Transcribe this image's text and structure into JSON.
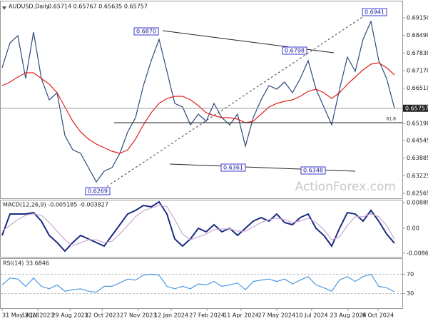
{
  "chart_data": [
    {
      "type": "line",
      "title": "AUDUSD,Daily",
      "ohlc_text": "0.65714 0.65767 0.65635 0.65757",
      "x": [
        0,
        2,
        4,
        6,
        8,
        10,
        12,
        14,
        16,
        18,
        20,
        22,
        24,
        26,
        28,
        30,
        32,
        34,
        36,
        38,
        40,
        42,
        44,
        46,
        48,
        50,
        52,
        54,
        56,
        58,
        60,
        62,
        64,
        66,
        68,
        70,
        72,
        74,
        76,
        78,
        80,
        82,
        84,
        86,
        88,
        90,
        92,
        94,
        96,
        98,
        100
      ],
      "xlim": [
        0,
        100
      ],
      "xticks": [
        {
          "value": 0,
          "label": "31 May 2023"
        },
        {
          "value": 9.1,
          "label": "14 Jul 2023"
        },
        {
          "value": 17.3,
          "label": "29 Aug 2023"
        },
        {
          "value": 25.5,
          "label": "12 Oct 2023"
        },
        {
          "value": 34.7,
          "label": "27 Nov 2023"
        },
        {
          "value": 43.1,
          "label": "12 Jan 2024"
        },
        {
          "value": 52.2,
          "label": "27 Feb 2024"
        },
        {
          "value": 60.9,
          "label": "11 Apr 2024"
        },
        {
          "value": 70,
          "label": "27 May 2024"
        },
        {
          "value": 78.9,
          "label": "10 Jul 2024"
        },
        {
          "value": 88.2,
          "label": "23 Aug 2024"
        },
        {
          "value": 95.8,
          "label": "8 Oct 2024"
        }
      ],
      "ylim": [
        0.62378,
        0.69766
      ],
      "yticks": [
        {
          "value": 0.6915,
          "label": "0.69150"
        },
        {
          "value": 0.6849,
          "label": "0.68490"
        },
        {
          "value": 0.6783,
          "label": "0.67830"
        },
        {
          "value": 0.6717,
          "label": "0.67170"
        },
        {
          "value": 0.6651,
          "label": "0.66510"
        },
        {
          "value": 0.6519,
          "label": "0.65190"
        },
        {
          "value": 0.64545,
          "label": "0.64545"
        },
        {
          "value": 0.63885,
          "label": "0.63885"
        },
        {
          "value": 0.63225,
          "label": "0.63225"
        },
        {
          "value": 0.62565,
          "label": "0.62565"
        }
      ],
      "series": [
        {
          "color": "#2b4a7a",
          "values": [
            0.67276,
            0.68213,
            0.68481,
            0.66875,
            0.68615,
            0.66875,
            0.66072,
            0.66339,
            0.64733,
            0.64198,
            0.64064,
            0.63529,
            0.62993,
            0.63395,
            0.63529,
            0.64064,
            0.64867,
            0.65402,
            0.66607,
            0.67544,
            0.68347,
            0.67142,
            0.65938,
            0.65804,
            0.65134,
            0.65536,
            0.65268,
            0.65938,
            0.65402,
            0.65134,
            0.65536,
            0.64331,
            0.65402,
            0.66072,
            0.66607,
            0.66473,
            0.66741,
            0.66339,
            0.66875,
            0.67544,
            0.66473,
            0.65804,
            0.65134,
            0.66473,
            0.67678,
            0.67142,
            0.68347,
            0.69016,
            0.67544,
            0.66875,
            0.65757
          ]
        },
        {
          "color": "#e0201b",
          "values": [
            0.66607,
            0.66741,
            0.66928,
            0.67089,
            0.67089,
            0.66875,
            0.66661,
            0.66339,
            0.65804,
            0.65268,
            0.64867,
            0.64599,
            0.64412,
            0.64278,
            0.64144,
            0.64064,
            0.64198,
            0.64599,
            0.65134,
            0.6559,
            0.65938,
            0.66125,
            0.66205,
            0.66205,
            0.66072,
            0.65857,
            0.6559,
            0.65483,
            0.65402,
            0.65402,
            0.65349,
            0.65215,
            0.65268,
            0.65536,
            0.65804,
            0.65938,
            0.66018,
            0.66072,
            0.66205,
            0.66393,
            0.66473,
            0.66339,
            0.66125,
            0.66339,
            0.66661,
            0.66928,
            0.67196,
            0.6741,
            0.67464,
            0.67276,
            0.67008
          ]
        }
      ],
      "current_price": {
        "value": 0.65757,
        "label": "0.65757"
      },
      "fib_label": "61.8",
      "annotations": [
        "0.6870",
        "0.6941",
        "0.6798",
        "0.6361",
        "0.6348",
        "0.6269"
      ],
      "watermark": "ActionForex.com"
    },
    {
      "type": "line",
      "title": "MACD(12,26,9) -0.005185 -0.003827",
      "ylim": [
        -0.00989,
        0.00989
      ],
      "yticks": [
        0.008896,
        {
          "value": 0,
          "label": "0.00"
        },
        -0.008612
      ],
      "series": [
        {
          "color": "#1a2a80",
          "values": [
            -0.00247,
            0.00494,
            0.00494,
            0.00494,
            0.00544,
            0.00247,
            -0.00247,
            -0.00494,
            -0.00791,
            -0.00494,
            -0.00247,
            -0.00371,
            -0.00494,
            -0.00618,
            -0.00247,
            0.00124,
            0.00494,
            0.00618,
            0.00791,
            0.00742,
            0.00915,
            0.00494,
            -0.00371,
            -0.00618,
            -0.00371,
            0,
            -0.00124,
            0.00124,
            -0.00124,
            0,
            -0.00247,
            0,
            0.00247,
            0.00371,
            0.00247,
            0.00494,
            0.00198,
            0.00124,
            0.00371,
            0.00494,
            0,
            -0.00247,
            -0.00618,
            0,
            0.00544,
            0.00494,
            0.00247,
            0.00618,
            0.00247,
            -0.00198,
            -0.005185
          ]
        },
        {
          "color": "#c9a8d0",
          "values": [
            -0.001,
            0.001,
            0.003,
            0.0045,
            0.005,
            0.0045,
            0.002,
            -0.001,
            -0.004,
            -0.006,
            -0.005,
            -0.004,
            -0.004,
            -0.005,
            -0.0045,
            -0.002,
            0.001,
            0.004,
            0.006,
            0.007,
            0.008,
            0.0075,
            0.003,
            -0.002,
            -0.004,
            -0.003,
            -0.002,
            -0.0005,
            -0.0002,
            -0.0002,
            -0.001,
            -0.001,
            0.0005,
            0.002,
            0.003,
            0.0035,
            0.003,
            0.002,
            0.0025,
            0.0035,
            0.002,
            -0.0005,
            -0.004,
            -0.003,
            0.001,
            0.004,
            0.004,
            0.005,
            0.004,
            0.001,
            -0.003827
          ]
        }
      ]
    },
    {
      "type": "line",
      "title": "RSI(14) 33.6846",
      "ylim": [
        0,
        100
      ],
      "yticks": [
        70,
        30
      ],
      "series": [
        {
          "color": "#4a98e0",
          "values": [
            48,
            62,
            60,
            45,
            62,
            45,
            40,
            48,
            35,
            38,
            40,
            35,
            33,
            45,
            45,
            52,
            60,
            58,
            68,
            70,
            68,
            45,
            40,
            45,
            40,
            50,
            48,
            55,
            45,
            48,
            52,
            38,
            55,
            58,
            60,
            55,
            60,
            50,
            58,
            65,
            48,
            42,
            35,
            58,
            65,
            55,
            65,
            70,
            45,
            42,
            33.6846
          ]
        }
      ]
    }
  ]
}
